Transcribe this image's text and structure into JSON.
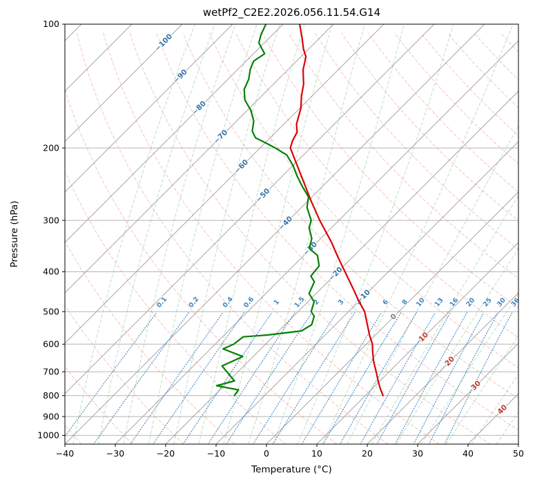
{
  "figure": {
    "title": "wetPf2_C2E2.2026.056.11.54.G14",
    "x_axis_label": "Temperature (°C)",
    "y_axis_label": "Pressure (hPa)"
  },
  "chart_data": {
    "type": "line",
    "plot_kind": "skew-t-log-p-sounding",
    "title": "wetPf2_C2E2.2026.056.11.54.G14",
    "xlabel": "Temperature (°C)",
    "ylabel": "Pressure (hPa)",
    "xlim": [
      -40,
      50
    ],
    "p_top": 100,
    "p_bottom": 1050,
    "skew_deg": 45,
    "grid": true,
    "x_ticks": [
      -40,
      -30,
      -20,
      -10,
      0,
      10,
      20,
      30,
      40,
      50
    ],
    "y_ticks": [
      100,
      200,
      300,
      400,
      500,
      600,
      700,
      800,
      900,
      1000
    ],
    "grid_color": "#b5b5b5",
    "isotherms": {
      "min": -140,
      "max": 50,
      "step": 10,
      "color": "#a8a8a8",
      "label_colors": {
        "negative": "#3a74a8",
        "zero": "#7f7f7f",
        "positive": "#c0392b"
      },
      "labels": [
        {
          "t": -100,
          "p": 111
        },
        {
          "t": -90,
          "p": 134
        },
        {
          "t": -80,
          "p": 160
        },
        {
          "t": -70,
          "p": 188
        },
        {
          "t": -60,
          "p": 222
        },
        {
          "t": -50,
          "p": 261
        },
        {
          "t": -40,
          "p": 305
        },
        {
          "t": -30,
          "p": 352
        },
        {
          "t": -20,
          "p": 405
        },
        {
          "t": -10,
          "p": 460
        },
        {
          "t": 0,
          "p": 515
        },
        {
          "t": 10,
          "p": 577
        },
        {
          "t": 20,
          "p": 661
        },
        {
          "t": 30,
          "p": 757
        },
        {
          "t": 40,
          "p": 866
        }
      ]
    },
    "dry_adiabats": {
      "theta_min": -40,
      "theta_max": 350,
      "step": 10,
      "color": "#e57368",
      "opacity": 0.42
    },
    "moist_adiabats": {
      "t0_min": -40,
      "t0_max": 45,
      "step": 5,
      "color": "#6fae6f",
      "opacity": 0.42
    },
    "mixing_ratio_lines": {
      "values": [
        0.1,
        0.2,
        0.4,
        0.6,
        1,
        1.5,
        2,
        3,
        4,
        6,
        8,
        10,
        13,
        16,
        20,
        25,
        30,
        36
      ],
      "color": "#3f86c0",
      "p_min": 490,
      "label_pressure": 478
    },
    "series": [
      {
        "name": "temperature",
        "color": "#dc0000",
        "points": [
          [
            800,
            13.5
          ],
          [
            770,
            11.6
          ],
          [
            740,
            9.8
          ],
          [
            700,
            7.4
          ],
          [
            660,
            4.8
          ],
          [
            620,
            2.4
          ],
          [
            600,
            1.2
          ],
          [
            570,
            -1.2
          ],
          [
            540,
            -3.5
          ],
          [
            500,
            -6.8
          ],
          [
            470,
            -10.2
          ],
          [
            440,
            -13.6
          ],
          [
            400,
            -18.6
          ],
          [
            370,
            -22.7
          ],
          [
            340,
            -27.0
          ],
          [
            300,
            -33.8
          ],
          [
            270,
            -39.2
          ],
          [
            240,
            -45.0
          ],
          [
            220,
            -49.3
          ],
          [
            200,
            -54.0
          ],
          [
            192,
            -55.0
          ],
          [
            183,
            -55.8
          ],
          [
            175,
            -57.5
          ],
          [
            160,
            -59.8
          ],
          [
            150,
            -62.0
          ],
          [
            140,
            -64.0
          ],
          [
            129,
            -67.0
          ],
          [
            120,
            -69.0
          ],
          [
            115,
            -71.0
          ],
          [
            108,
            -73.5
          ],
          [
            100,
            -76.7
          ]
        ]
      },
      {
        "name": "dewpoint",
        "color": "#008000",
        "points": [
          [
            800,
            -16.0
          ],
          [
            775,
            -16.3
          ],
          [
            757,
            -21.5
          ],
          [
            737,
            -18.9
          ],
          [
            678,
            -24.3
          ],
          [
            643,
            -22.1
          ],
          [
            616,
            -27.5
          ],
          [
            600,
            -26.3
          ],
          [
            576,
            -25.9
          ],
          [
            570,
            -21.4
          ],
          [
            557,
            -15.5
          ],
          [
            538,
            -14.7
          ],
          [
            513,
            -15.9
          ],
          [
            500,
            -17.4
          ],
          [
            473,
            -18.8
          ],
          [
            452,
            -21.4
          ],
          [
            423,
            -22.7
          ],
          [
            410,
            -24.5
          ],
          [
            387,
            -24.9
          ],
          [
            365,
            -27.3
          ],
          [
            351,
            -30.3
          ],
          [
            332,
            -31.8
          ],
          [
            313,
            -34.4
          ],
          [
            300,
            -35.5
          ],
          [
            279,
            -38.9
          ],
          [
            263,
            -40.7
          ],
          [
            248,
            -44.0
          ],
          [
            234,
            -47.1
          ],
          [
            221,
            -49.9
          ],
          [
            208,
            -53.3
          ],
          [
            200,
            -57.0
          ],
          [
            194,
            -60.1
          ],
          [
            189,
            -62.9
          ],
          [
            182,
            -64.9
          ],
          [
            172,
            -66.6
          ],
          [
            162,
            -69.3
          ],
          [
            153,
            -72.5
          ],
          [
            144,
            -74.8
          ],
          [
            136,
            -75.9
          ],
          [
            129,
            -77.5
          ],
          [
            123,
            -78.5
          ],
          [
            118,
            -77.8
          ],
          [
            111,
            -81.1
          ],
          [
            106,
            -82.3
          ],
          [
            100,
            -83.4
          ]
        ]
      }
    ]
  }
}
